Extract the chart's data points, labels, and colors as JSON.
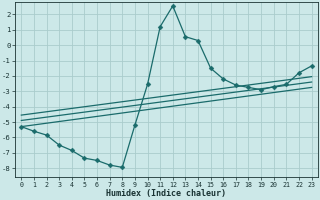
{
  "xlabel": "Humidex (Indice chaleur)",
  "bg_color": "#cce8e8",
  "grid_color": "#aacccc",
  "line_color": "#1a6b6b",
  "xlim": [
    -0.5,
    23.5
  ],
  "ylim": [
    -8.6,
    2.8
  ],
  "xticks": [
    0,
    1,
    2,
    3,
    4,
    5,
    6,
    7,
    8,
    9,
    10,
    11,
    12,
    13,
    14,
    15,
    16,
    17,
    18,
    19,
    20,
    21,
    22,
    23
  ],
  "yticks": [
    -8,
    -7,
    -6,
    -5,
    -4,
    -3,
    -2,
    -1,
    0,
    1,
    2
  ],
  "curve1_x": [
    0,
    1,
    2,
    3,
    4,
    5,
    6,
    7,
    8,
    9,
    10,
    11,
    12,
    13,
    14,
    15,
    16,
    17,
    18,
    19,
    20,
    21,
    22,
    23
  ],
  "curve1_y": [
    -5.3,
    -5.6,
    -5.85,
    -6.5,
    -6.85,
    -7.35,
    -7.5,
    -7.8,
    -7.95,
    -5.2,
    -2.55,
    1.2,
    2.55,
    0.55,
    0.3,
    -1.5,
    -2.2,
    -2.6,
    -2.75,
    -2.9,
    -2.7,
    -2.55,
    -1.8,
    -1.35
  ],
  "curve2_x": [
    0,
    23
  ],
  "curve2_y": [
    -5.3,
    -2.75
  ],
  "curve3_x": [
    0,
    23
  ],
  "curve3_y": [
    -4.9,
    -2.4
  ],
  "curve4_x": [
    0,
    23
  ],
  "curve4_y": [
    -4.55,
    -2.05
  ],
  "markersize": 2.5,
  "linewidth": 0.9
}
